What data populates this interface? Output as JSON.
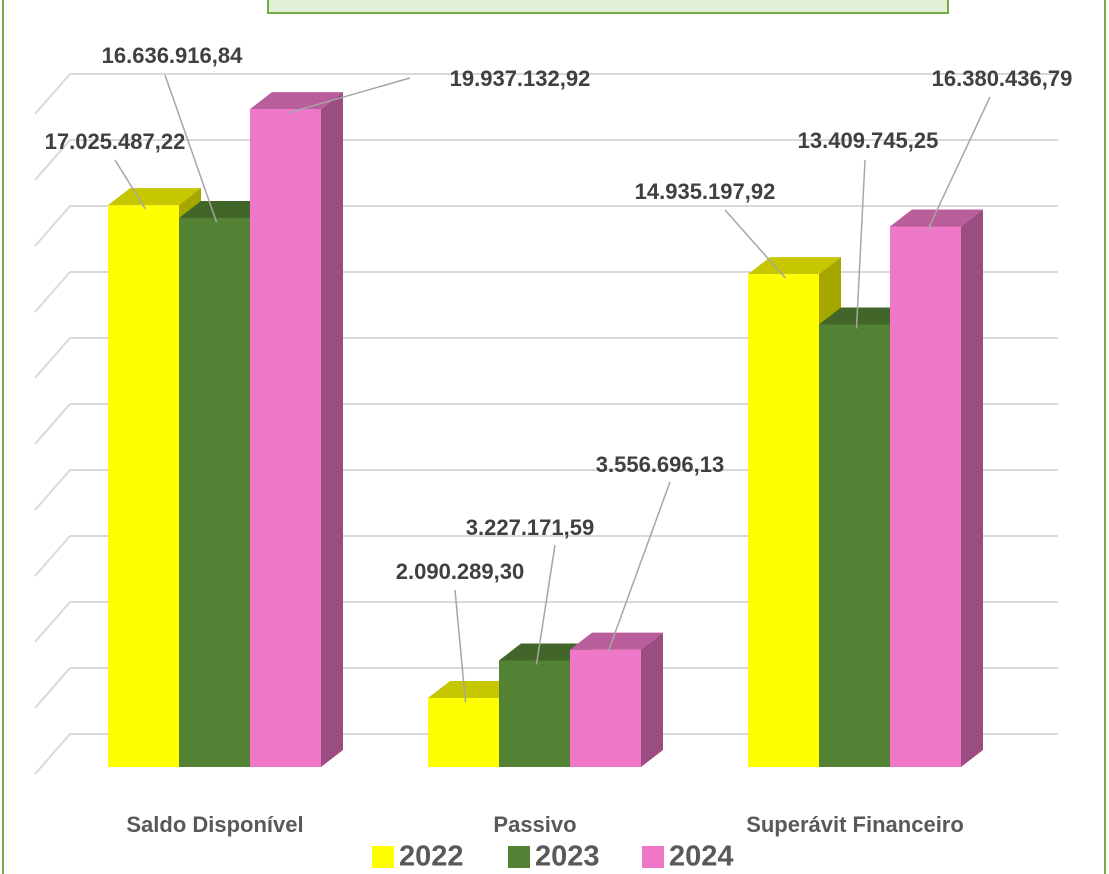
{
  "chart_data": {
    "type": "bar3d",
    "categories": [
      "Saldo Disponível",
      "Passivo",
      "Superávit Financeiro"
    ],
    "series": [
      {
        "name": "2022",
        "color": "#ffff00",
        "values": [
          17025487.22,
          2090289.3,
          14935197.92
        ],
        "value_labels": [
          "17.025.487,22",
          "2.090.289,30",
          "14.935.197,92"
        ]
      },
      {
        "name": "2023",
        "color": "#548235",
        "values": [
          16636916.84,
          3227171.59,
          13409745.25
        ],
        "value_labels": [
          "16.636.916,84",
          "3.227.171,59",
          "13.409.745,25"
        ]
      },
      {
        "name": "2024",
        "color": "#ef77c7",
        "values": [
          19937132.92,
          3556696.13,
          16380436.79
        ],
        "value_labels": [
          "19.937.132,92",
          "3.556.696,13",
          "16.380.436,79"
        ]
      }
    ],
    "ylim": [
      0,
      20000000
    ],
    "yticks": [
      0,
      2000000,
      4000000,
      6000000,
      8000000,
      10000000,
      12000000,
      14000000,
      16000000,
      18000000,
      20000000
    ],
    "grid": true,
    "legend": "bottom"
  }
}
